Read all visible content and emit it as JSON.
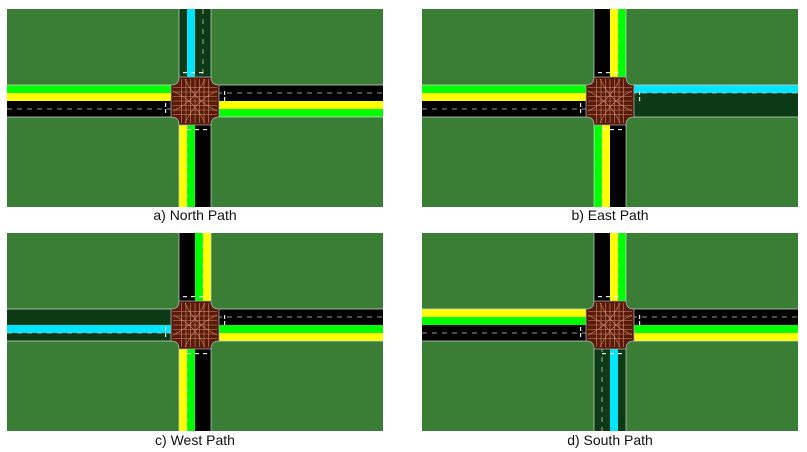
{
  "colors": {
    "grass": "#3a7d35",
    "road": "#000000",
    "road_dark": "#0b3a14",
    "lane_green": "#00ff00",
    "lane_yellow": "#ffff00",
    "lane_cyan": "#00e5ff",
    "junction": "#5a1a08"
  },
  "panels": [
    {
      "caption": "a) North Path",
      "legs": {
        "north": [
          "road_dark",
          "lane_cyan",
          "road_dark",
          "road_dark"
        ],
        "south": [
          "lane_yellow",
          "lane_green",
          "road",
          "road"
        ],
        "west": [
          "lane_green",
          "lane_yellow",
          "road",
          "road"
        ],
        "east": [
          "road",
          "road",
          "lane_yellow",
          "lane_green"
        ]
      }
    },
    {
      "caption": "b) East Path",
      "legs": {
        "north": [
          "road",
          "road",
          "lane_yellow",
          "lane_green"
        ],
        "south": [
          "lane_green",
          "lane_yellow",
          "road",
          "road"
        ],
        "west": [
          "lane_green",
          "lane_yellow",
          "road",
          "road"
        ],
        "east": [
          "lane_cyan",
          "road_dark",
          "road_dark",
          "road_dark"
        ]
      }
    },
    {
      "caption": "c) West Path",
      "legs": {
        "north": [
          "road",
          "road",
          "lane_green",
          "lane_yellow"
        ],
        "south": [
          "lane_yellow",
          "lane_green",
          "road",
          "road"
        ],
        "west": [
          "road_dark",
          "road_dark",
          "lane_cyan",
          "road_dark"
        ],
        "east": [
          "road",
          "road",
          "lane_green",
          "lane_yellow"
        ]
      }
    },
    {
      "caption": "d) South Path",
      "legs": {
        "north": [
          "road",
          "road",
          "lane_yellow",
          "lane_green"
        ],
        "south": [
          "road_dark",
          "road_dark",
          "lane_cyan",
          "road_dark"
        ],
        "west": [
          "lane_yellow",
          "lane_green",
          "road",
          "road"
        ],
        "east": [
          "road",
          "road",
          "lane_green",
          "lane_yellow"
        ]
      }
    }
  ]
}
